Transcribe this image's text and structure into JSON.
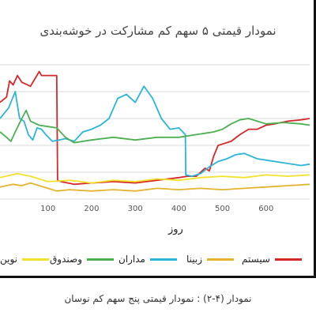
{
  "caption": "نمودار (۴-۲) : نمودار قیمتی پنج سهم کم نوسان",
  "chart_data": {
    "type": "line",
    "title": "نمودار قیمتی ۵ سهم کم مشارکت در خوشه‌بندی",
    "xlabel": "روز",
    "ylabel": "",
    "xlim": [
      -10,
      700
    ],
    "ylim": [
      0,
      100
    ],
    "xticks": [
      100,
      200,
      300,
      400,
      500,
      600
    ],
    "xtick_labels": [
      "100",
      "200",
      "300",
      "400",
      "500",
      "600"
    ],
    "grid": true,
    "legend_position": "bottom",
    "series": [
      {
        "name": "سیستم",
        "color": "#d62728",
        "x": [
          -10,
          5,
          12,
          20,
          30,
          40,
          60,
          80,
          85,
          100,
          120,
          122,
          130,
          160,
          200,
          250,
          300,
          350,
          400,
          420,
          440,
          460,
          470,
          480,
          490,
          500,
          520,
          540,
          560,
          580,
          600,
          620,
          650,
          680,
          700
        ],
        "y": [
          72,
          76,
          88,
          85,
          92,
          87,
          84,
          95,
          92,
          92,
          92,
          14,
          13,
          11,
          12,
          13,
          12,
          14,
          16,
          17,
          17,
          23,
          21,
          32,
          40,
          41,
          43,
          48,
          52,
          52,
          55,
          56,
          58,
          59,
          60
        ]
      },
      {
        "name": "زبینا",
        "color": "#e6b32e",
        "x": [
          -10,
          20,
          40,
          60,
          100,
          120,
          150,
          200,
          250,
          300,
          350,
          400,
          450,
          500,
          550,
          600,
          650,
          700
        ],
        "y": [
          9,
          11,
          10,
          12,
          8,
          6,
          7,
          6,
          7,
          6,
          8,
          7,
          8,
          7,
          8,
          9,
          10,
          11
        ]
      },
      {
        "name": "مداران",
        "color": "#2bb5d8",
        "x": [
          -10,
          10,
          25,
          35,
          45,
          55,
          65,
          75,
          85,
          95,
          110,
          125,
          140,
          160,
          180,
          200,
          220,
          240,
          260,
          280,
          300,
          320,
          340,
          360,
          380,
          400,
          415,
          416,
          430,
          450,
          470,
          490,
          510,
          530,
          550,
          580,
          600,
          640,
          680,
          700
        ],
        "y": [
          60,
          68,
          80,
          60,
          58,
          48,
          44,
          53,
          52,
          48,
          43,
          44,
          45,
          43,
          50,
          52,
          55,
          60,
          75,
          78,
          72,
          84,
          75,
          60,
          52,
          53,
          48,
          18,
          17,
          19,
          24,
          28,
          30,
          33,
          34,
          30,
          29,
          27,
          25,
          26
        ]
      },
      {
        "name": "وصندوق",
        "color": "#4caf50",
        "x": [
          -10,
          5,
          15,
          25,
          40,
          50,
          60,
          80,
          100,
          120,
          140,
          160,
          200,
          250,
          300,
          350,
          400,
          440,
          460,
          480,
          500,
          520,
          540,
          560,
          580,
          600,
          640,
          680,
          700
        ],
        "y": [
          50,
          46,
          43,
          50,
          60,
          66,
          58,
          55,
          54,
          53,
          46,
          42,
          44,
          46,
          44,
          46,
          46,
          48,
          49,
          50,
          52,
          56,
          59,
          60,
          58,
          56,
          57,
          56,
          55
        ]
      },
      {
        "name": "نوین",
        "color": "#f2e22a",
        "x": [
          -10,
          30,
          60,
          100,
          150,
          200,
          250,
          300,
          350,
          400,
          450,
          500,
          550,
          600,
          650,
          700
        ],
        "y": [
          16,
          19,
          17,
          13,
          14,
          12,
          14,
          13,
          15,
          14,
          16,
          17,
          16,
          18,
          17,
          18
        ]
      }
    ]
  }
}
